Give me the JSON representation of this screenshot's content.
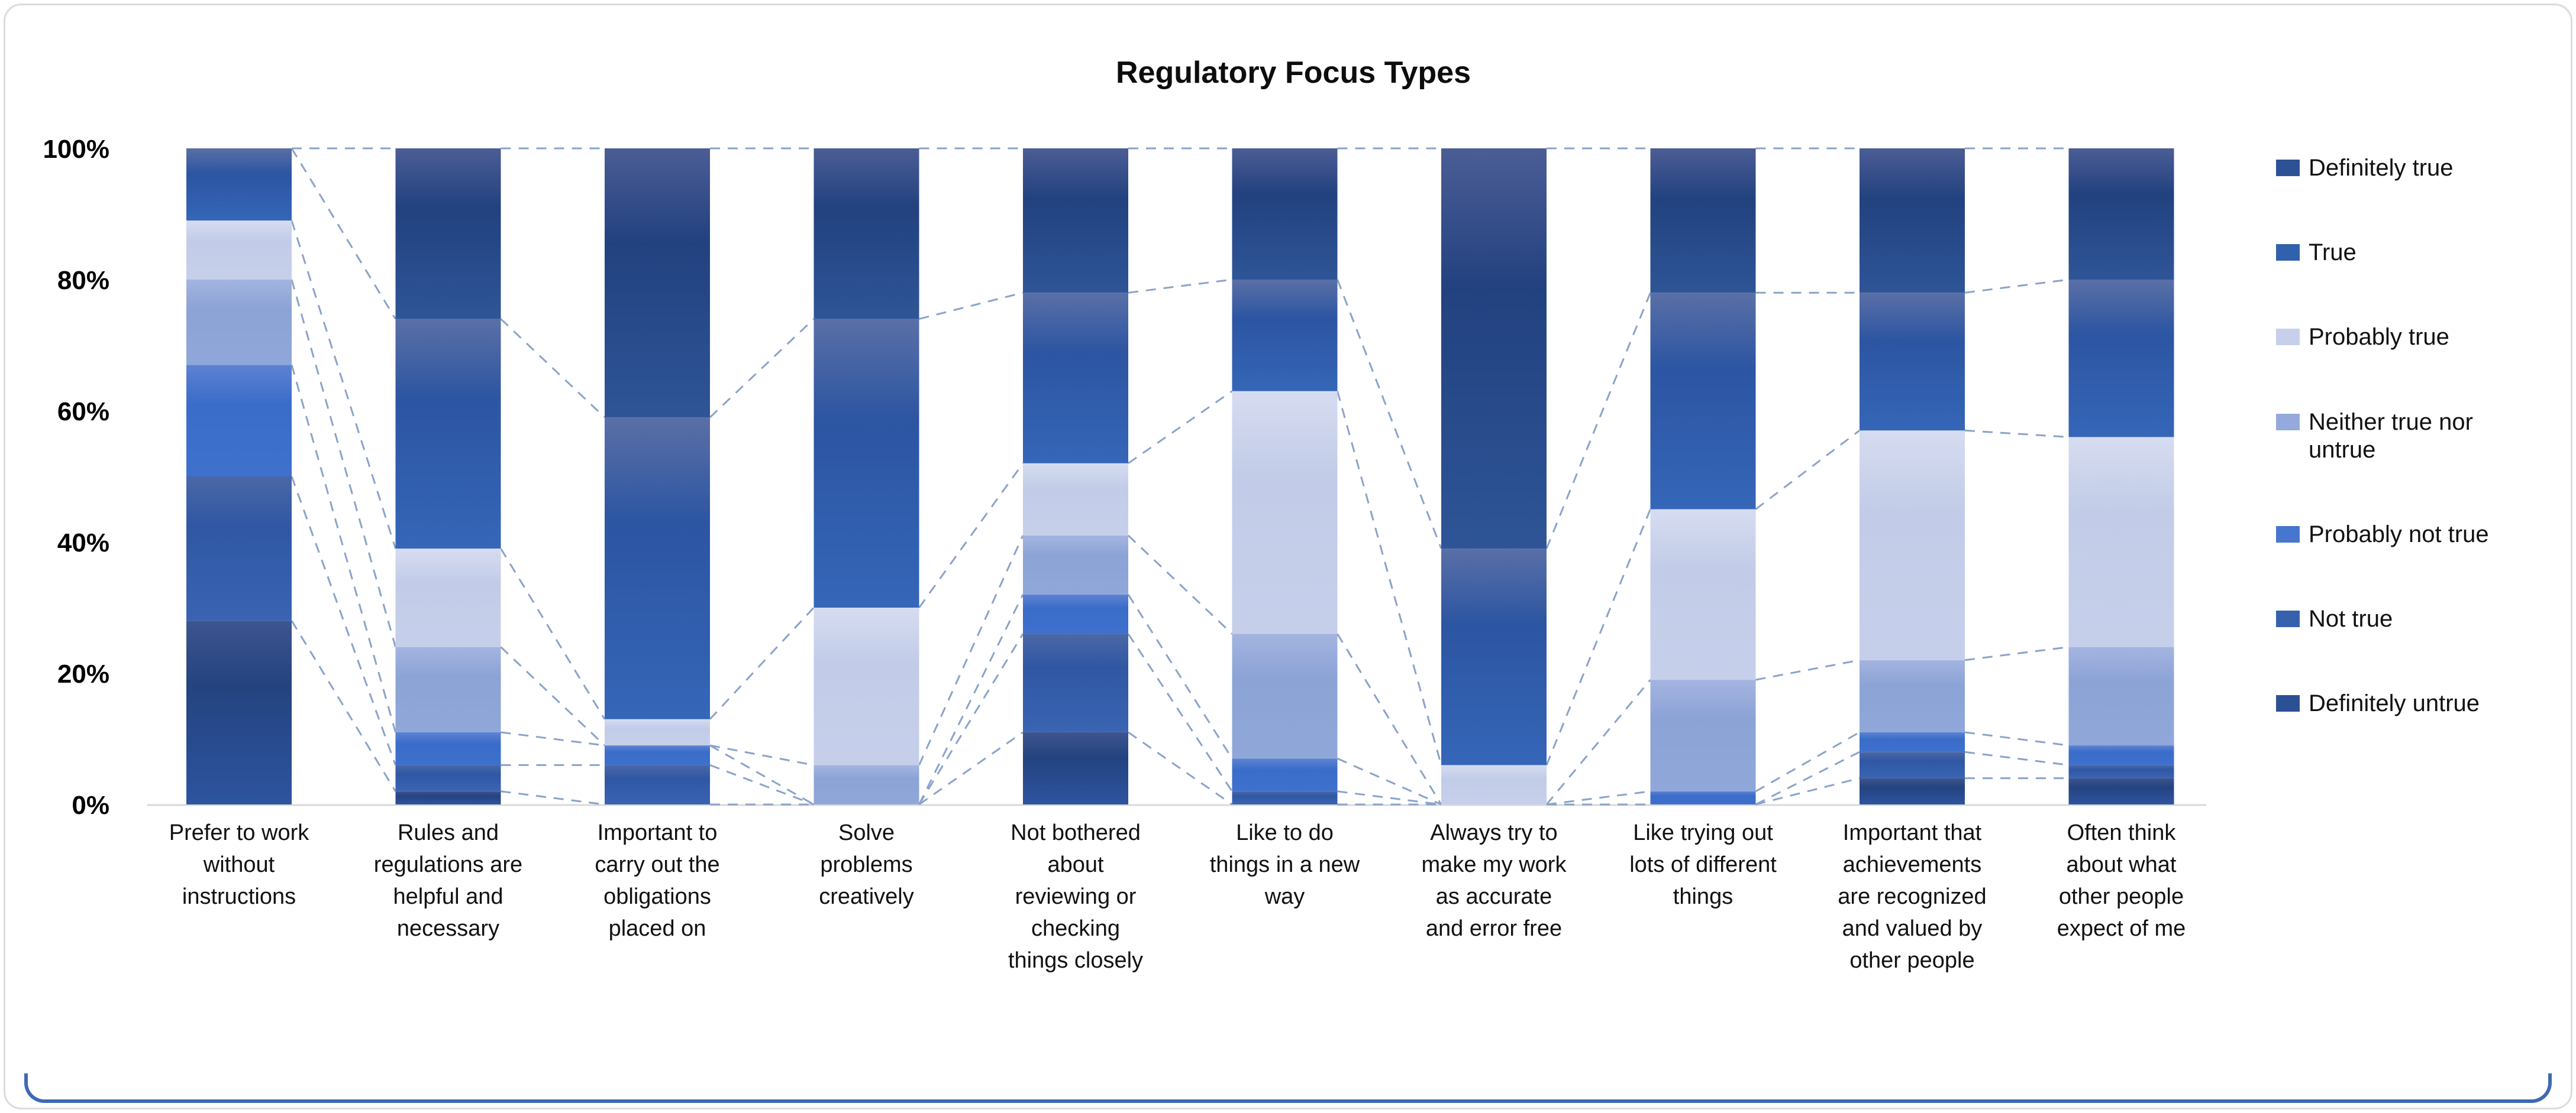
{
  "window": {
    "background": "#ffffff",
    "card_border_color": "#dbdbdb",
    "bottom_accent_color": "#3e69b3"
  },
  "chart_data": {
    "type": "bar",
    "variant": "stacked-100-percent-column",
    "title": "Regulatory Focus Types",
    "grid": "off",
    "legend_position": "right",
    "ylim": [
      0,
      100
    ],
    "y_axis": {
      "ticks_top_to_bottom": [
        "100%",
        "80%",
        "60%",
        "40%",
        "20%",
        "0%"
      ],
      "min": 0,
      "max": 100,
      "unit": "%"
    },
    "categories": [
      "Prefer to work without instructions",
      "Rules and regulations are helpful and necessary",
      "Important to carry out the obligations placed on",
      "Solve problems creatively",
      "Not bothered about reviewing or checking things closely",
      "Like to do things in a new way",
      "Always try to make my work as accurate and error free",
      "Like trying out lots of different things",
      "Important that achievements are recognized and valued by other people",
      "Often think about what other people expect of me"
    ],
    "categories_wrapped": [
      [
        "Prefer to work",
        "without",
        "instructions"
      ],
      [
        "Rules and",
        "regulations are",
        "helpful and",
        "necessary"
      ],
      [
        "Important to",
        "carry out the",
        "obligations",
        "placed on"
      ],
      [
        "Solve",
        "problems",
        "creatively"
      ],
      [
        "Not bothered",
        "about",
        "reviewing or",
        "checking",
        "things closely"
      ],
      [
        "Like to do",
        "things in a new",
        "way"
      ],
      [
        "Always try to",
        "make my work",
        "as accurate",
        "and error free"
      ],
      [
        "Like trying out",
        "lots of different",
        "things"
      ],
      [
        "Important that",
        "achievements",
        "are recognized",
        "and valued by",
        "other people"
      ],
      [
        "Often think",
        "about what",
        "other people",
        "expect of me"
      ]
    ],
    "series_bottom_to_top": [
      {
        "name": "Definitely untrue",
        "color": "#2c5094",
        "gradient": [
          "#3d5590",
          "#24437f",
          "#2d54a0"
        ],
        "values": [
          28,
          2,
          0,
          0,
          11,
          0,
          0,
          0,
          4,
          4
        ]
      },
      {
        "name": "Not true",
        "color": "#3661ad",
        "gradient": [
          "#4a68a6",
          "#2f57a4",
          "#3a64b2"
        ],
        "values": [
          22,
          4,
          6,
          0,
          15,
          2,
          0,
          0,
          4,
          2
        ]
      },
      {
        "name": "Probably not true",
        "color": "#4676cd",
        "gradient": [
          "#5d82d3",
          "#3a6cc9",
          "#3e70cd"
        ],
        "values": [
          17,
          5,
          3,
          0,
          6,
          5,
          0,
          2,
          3,
          3
        ]
      },
      {
        "name": "Neither true nor untrue",
        "color": "#94aadc",
        "gradient": [
          "#a4b4e0",
          "#8ca3d6",
          "#90a7d9"
        ],
        "values": [
          13,
          13,
          0,
          6,
          9,
          19,
          0,
          17,
          11,
          15
        ]
      },
      {
        "name": "Probably true",
        "color": "#c7d0ea",
        "gradient": [
          "#d6dcf0",
          "#c2cce8",
          "#c6cfea"
        ],
        "values": [
          9,
          15,
          4,
          24,
          11,
          37,
          6,
          26,
          35,
          32
        ]
      },
      {
        "name": "True",
        "color": "#3160ac",
        "gradient": [
          "#5a6fa6",
          "#2c55a2",
          "#3566b8"
        ],
        "values": [
          11,
          35,
          46,
          44,
          26,
          17,
          33,
          33,
          21,
          24
        ]
      },
      {
        "name": "Definitely true",
        "color": "#2d5195",
        "gradient": [
          "#4b5d95",
          "#22417f",
          "#2e5597"
        ],
        "values": [
          0,
          26,
          41,
          26,
          22,
          20,
          61,
          22,
          22,
          20
        ]
      }
    ],
    "legend": {
      "labels_top_to_bottom": [
        "Definitely true",
        "True",
        "Probably true",
        "Neither true nor untrue",
        "Probably not true",
        "Not true",
        "Definitely untrue"
      ],
      "wrapped": [
        [
          "Definitely true"
        ],
        [
          "True"
        ],
        [
          "Probably true"
        ],
        [
          "Neither true nor",
          "untrue"
        ],
        [
          "Probably not true"
        ],
        [
          "Not true"
        ],
        [
          "Definitely untrue"
        ]
      ]
    },
    "connector_lines": {
      "style": "dashed",
      "color": "#8aa3c9"
    },
    "axis_line_color": "#d9d9d9",
    "tick_label_color": "#000000"
  }
}
